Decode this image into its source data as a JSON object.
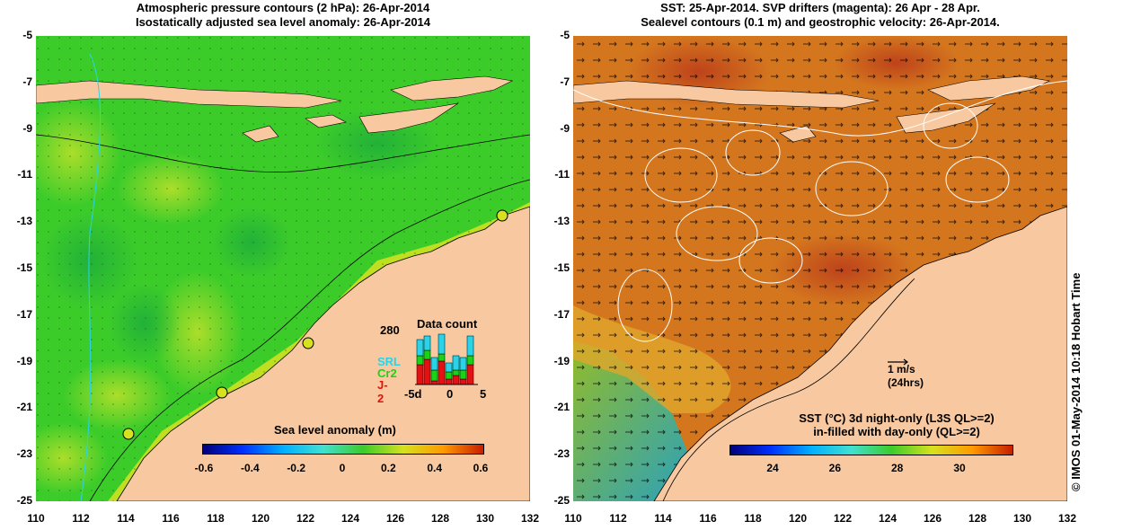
{
  "left_title": {
    "line1": "Atmospheric pressure contours (2 hPa): 26-Apr-2014",
    "line2": "Isostatically adjusted sea level anomaly: 26-Apr-2014"
  },
  "right_title": {
    "line1": "SST: 25-Apr-2014. SVP drifters (magenta): 26 Apr - 28 Apr.",
    "line2": "Sealevel contours (0.1 m) and geostrophic velocity: 26-Apr-2014."
  },
  "axes": {
    "y_ticks": [
      "-5",
      "-7",
      "-9",
      "-11",
      "-13",
      "-15",
      "-17",
      "-19",
      "-21",
      "-23",
      "-25"
    ],
    "x_ticks": [
      "110",
      "112",
      "114",
      "116",
      "118",
      "120",
      "122",
      "124",
      "126",
      "128",
      "130",
      "132"
    ]
  },
  "left_colorbar": {
    "label": "Sea level anomaly (m)",
    "ticks": [
      "-0.6",
      "-0.4",
      "-0.2",
      "0",
      "0.2",
      "0.4",
      "0.6"
    ]
  },
  "right_colorbar": {
    "label_line1": "SST (°C)  3d night-only (L3S QL>=2)",
    "label_line2": "in-filled with day-only (QL>=2)",
    "ticks": [
      "24",
      "26",
      "28",
      "30"
    ]
  },
  "data_count": {
    "title": "Data count",
    "max_label": "280",
    "x_ticks": [
      "-5d",
      "0",
      "5"
    ],
    "satellites": [
      {
        "name": "SRL",
        "color": "#2ad4e8"
      },
      {
        "name": "Cr2",
        "color": "#17d417"
      },
      {
        "name": "J-2",
        "color": "#e61010"
      }
    ]
  },
  "velocity_key": {
    "label": "1 m/s",
    "sublabel": "(24hrs)"
  },
  "credit": "© IMOS 01-May-2014 10:18 Hobart Time",
  "colors": {
    "land": "#f8c9a0",
    "ocean_sla": "#3ccc2a",
    "ocean_sst": "#d4761e"
  }
}
